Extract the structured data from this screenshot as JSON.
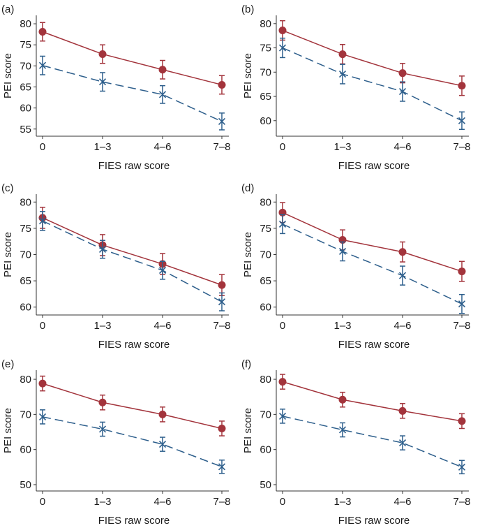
{
  "colors": {
    "series_1": "#a3343c",
    "series_2": "#2e5f8c"
  },
  "chart_data": [
    {
      "type": "line",
      "panel_label": "(a)",
      "xlabel": "FIES raw score",
      "ylabel": "PEI score",
      "categories": [
        "0",
        "1–3",
        "4–6",
        "7–8"
      ],
      "ylim": [
        53.3,
        82
      ],
      "yticks": [
        55,
        60,
        65,
        70,
        75,
        80
      ],
      "series": [
        {
          "marker": "circle",
          "line": "solid",
          "values": [
            78.1,
            72.8,
            69.1,
            65.5
          ],
          "error": [
            2.2,
            2.2,
            2.2,
            2.2
          ]
        },
        {
          "marker": "x",
          "line": "dashed",
          "values": [
            70.1,
            66.2,
            63.2,
            56.8
          ],
          "error": [
            2.2,
            2.2,
            2.1,
            2.0
          ]
        }
      ]
    },
    {
      "type": "line",
      "panel_label": "(b)",
      "xlabel": "FIES raw score",
      "ylabel": "PEI score",
      "categories": [
        "0",
        "1–3",
        "4–6",
        "7–8"
      ],
      "ylim": [
        56.8,
        81.7
      ],
      "yticks": [
        60,
        65,
        70,
        75,
        80
      ],
      "series": [
        {
          "marker": "circle",
          "line": "solid",
          "values": [
            78.6,
            73.7,
            69.8,
            67.2
          ],
          "error": [
            2.0,
            2.0,
            2.0,
            2.0
          ]
        },
        {
          "marker": "x",
          "line": "dashed",
          "values": [
            75.0,
            69.6,
            66.0,
            60.0
          ],
          "error": [
            2.0,
            2.0,
            2.0,
            1.8
          ]
        }
      ]
    },
    {
      "type": "line",
      "panel_label": "(c)",
      "xlabel": "FIES raw score",
      "ylabel": "PEI score",
      "categories": [
        "0",
        "1–3",
        "4–6",
        "7–8"
      ],
      "ylim": [
        58.5,
        81.5
      ],
      "yticks": [
        60,
        65,
        70,
        75,
        80
      ],
      "series": [
        {
          "marker": "circle",
          "line": "solid",
          "values": [
            77.0,
            71.8,
            68.2,
            64.2
          ],
          "error": [
            2.0,
            2.0,
            2.0,
            2.0
          ]
        },
        {
          "marker": "x",
          "line": "dashed",
          "values": [
            76.4,
            71.0,
            67.0,
            61.0
          ],
          "error": [
            1.8,
            1.7,
            1.7,
            1.7
          ]
        }
      ]
    },
    {
      "type": "line",
      "panel_label": "(d)",
      "xlabel": "FIES raw score",
      "ylabel": "PEI score",
      "categories": [
        "0",
        "1–3",
        "4–6",
        "7–8"
      ],
      "ylim": [
        58.5,
        81.5
      ],
      "yticks": [
        60,
        65,
        70,
        75,
        80
      ],
      "series": [
        {
          "marker": "circle",
          "line": "solid",
          "values": [
            78.0,
            72.8,
            70.5,
            66.8
          ],
          "error": [
            1.9,
            1.9,
            1.9,
            1.9
          ]
        },
        {
          "marker": "x",
          "line": "dashed",
          "values": [
            75.8,
            70.6,
            66.0,
            60.6
          ],
          "error": [
            1.8,
            1.8,
            1.8,
            1.8
          ]
        }
      ]
    },
    {
      "type": "line",
      "panel_label": "(e)",
      "xlabel": "FIES raw score",
      "ylabel": "PEI score",
      "categories": [
        "0",
        "1–3",
        "4–6",
        "7–8"
      ],
      "ylim": [
        48.2,
        82.6
      ],
      "yticks": [
        50,
        60,
        70,
        80
      ],
      "series": [
        {
          "marker": "circle",
          "line": "solid",
          "values": [
            78.8,
            73.4,
            70.0,
            66.0
          ],
          "error": [
            2.1,
            2.1,
            2.1,
            2.1
          ]
        },
        {
          "marker": "x",
          "line": "dashed",
          "values": [
            69.3,
            65.8,
            61.5,
            55.1
          ],
          "error": [
            2.0,
            2.0,
            2.0,
            1.9
          ]
        }
      ]
    },
    {
      "type": "line",
      "panel_label": "(f)",
      "xlabel": "FIES raw score",
      "ylabel": "PEI score",
      "categories": [
        "0",
        "1–3",
        "4–6",
        "7–8"
      ],
      "ylim": [
        48.2,
        82.6
      ],
      "yticks": [
        50,
        60,
        70,
        80
      ],
      "series": [
        {
          "marker": "circle",
          "line": "solid",
          "values": [
            79.3,
            74.2,
            71.0,
            68.1
          ],
          "error": [
            2.1,
            2.1,
            2.1,
            2.1
          ]
        },
        {
          "marker": "x",
          "line": "dashed",
          "values": [
            69.5,
            65.6,
            61.9,
            55.0
          ],
          "error": [
            2.0,
            2.0,
            2.0,
            1.9
          ]
        }
      ]
    }
  ]
}
